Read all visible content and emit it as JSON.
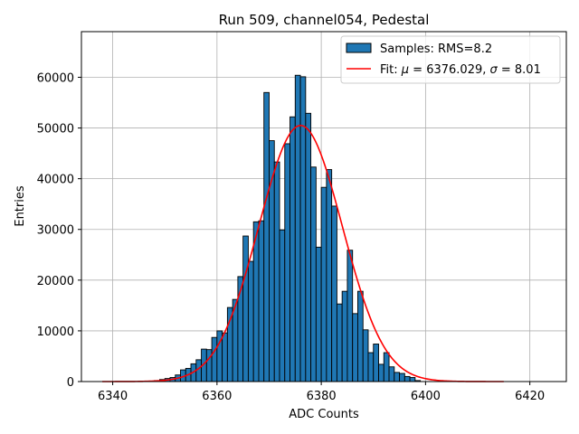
{
  "chart_data": {
    "type": "bar",
    "title": "Run 509, channel054, Pedestal",
    "xlabel": "ADC Counts",
    "ylabel": "Entries",
    "xlim": [
      6334,
      6427
    ],
    "ylim": [
      0,
      69000
    ],
    "xticks": [
      6340,
      6360,
      6380,
      6400,
      6420
    ],
    "yticks": [
      0,
      10000,
      20000,
      30000,
      40000,
      50000,
      60000
    ],
    "grid": true,
    "legend_position": "top-right",
    "bin_width": 1,
    "bin_start": 6348,
    "histogram_counts": [
      200,
      400,
      600,
      800,
      1300,
      2300,
      2600,
      3500,
      4300,
      6400,
      6300,
      8700,
      10000,
      9600,
      14600,
      16200,
      20700,
      28700,
      23700,
      31500,
      31700,
      57000,
      47500,
      43300,
      29900,
      46900,
      52200,
      60400,
      60100,
      52900,
      42300,
      26500,
      38300,
      41800,
      34600,
      15300,
      17800,
      25900,
      13400,
      17800,
      10200,
      5700,
      7400,
      3400,
      5700,
      2900,
      1800,
      1600,
      1000,
      800,
      200
    ],
    "series": [
      {
        "name": "Samples: RMS=8.2",
        "kind": "histogram",
        "color": "#1f77b4"
      },
      {
        "name": "Fit: μ = 6376.029, σ = 8.01",
        "kind": "gaussian",
        "color": "#ff0000",
        "mu": 6376.029,
        "sigma": 8.01,
        "amplitude": 50500,
        "x_range": [
          6338,
          6415
        ]
      }
    ]
  },
  "legend": {
    "samples_label": "Samples: RMS=8.2",
    "fit_prefix": "Fit: ",
    "fit_mu_symbol": "μ",
    "fit_mu_value": " = 6376.029, ",
    "fit_sigma_symbol": "σ",
    "fit_sigma_value": " = 8.01"
  }
}
